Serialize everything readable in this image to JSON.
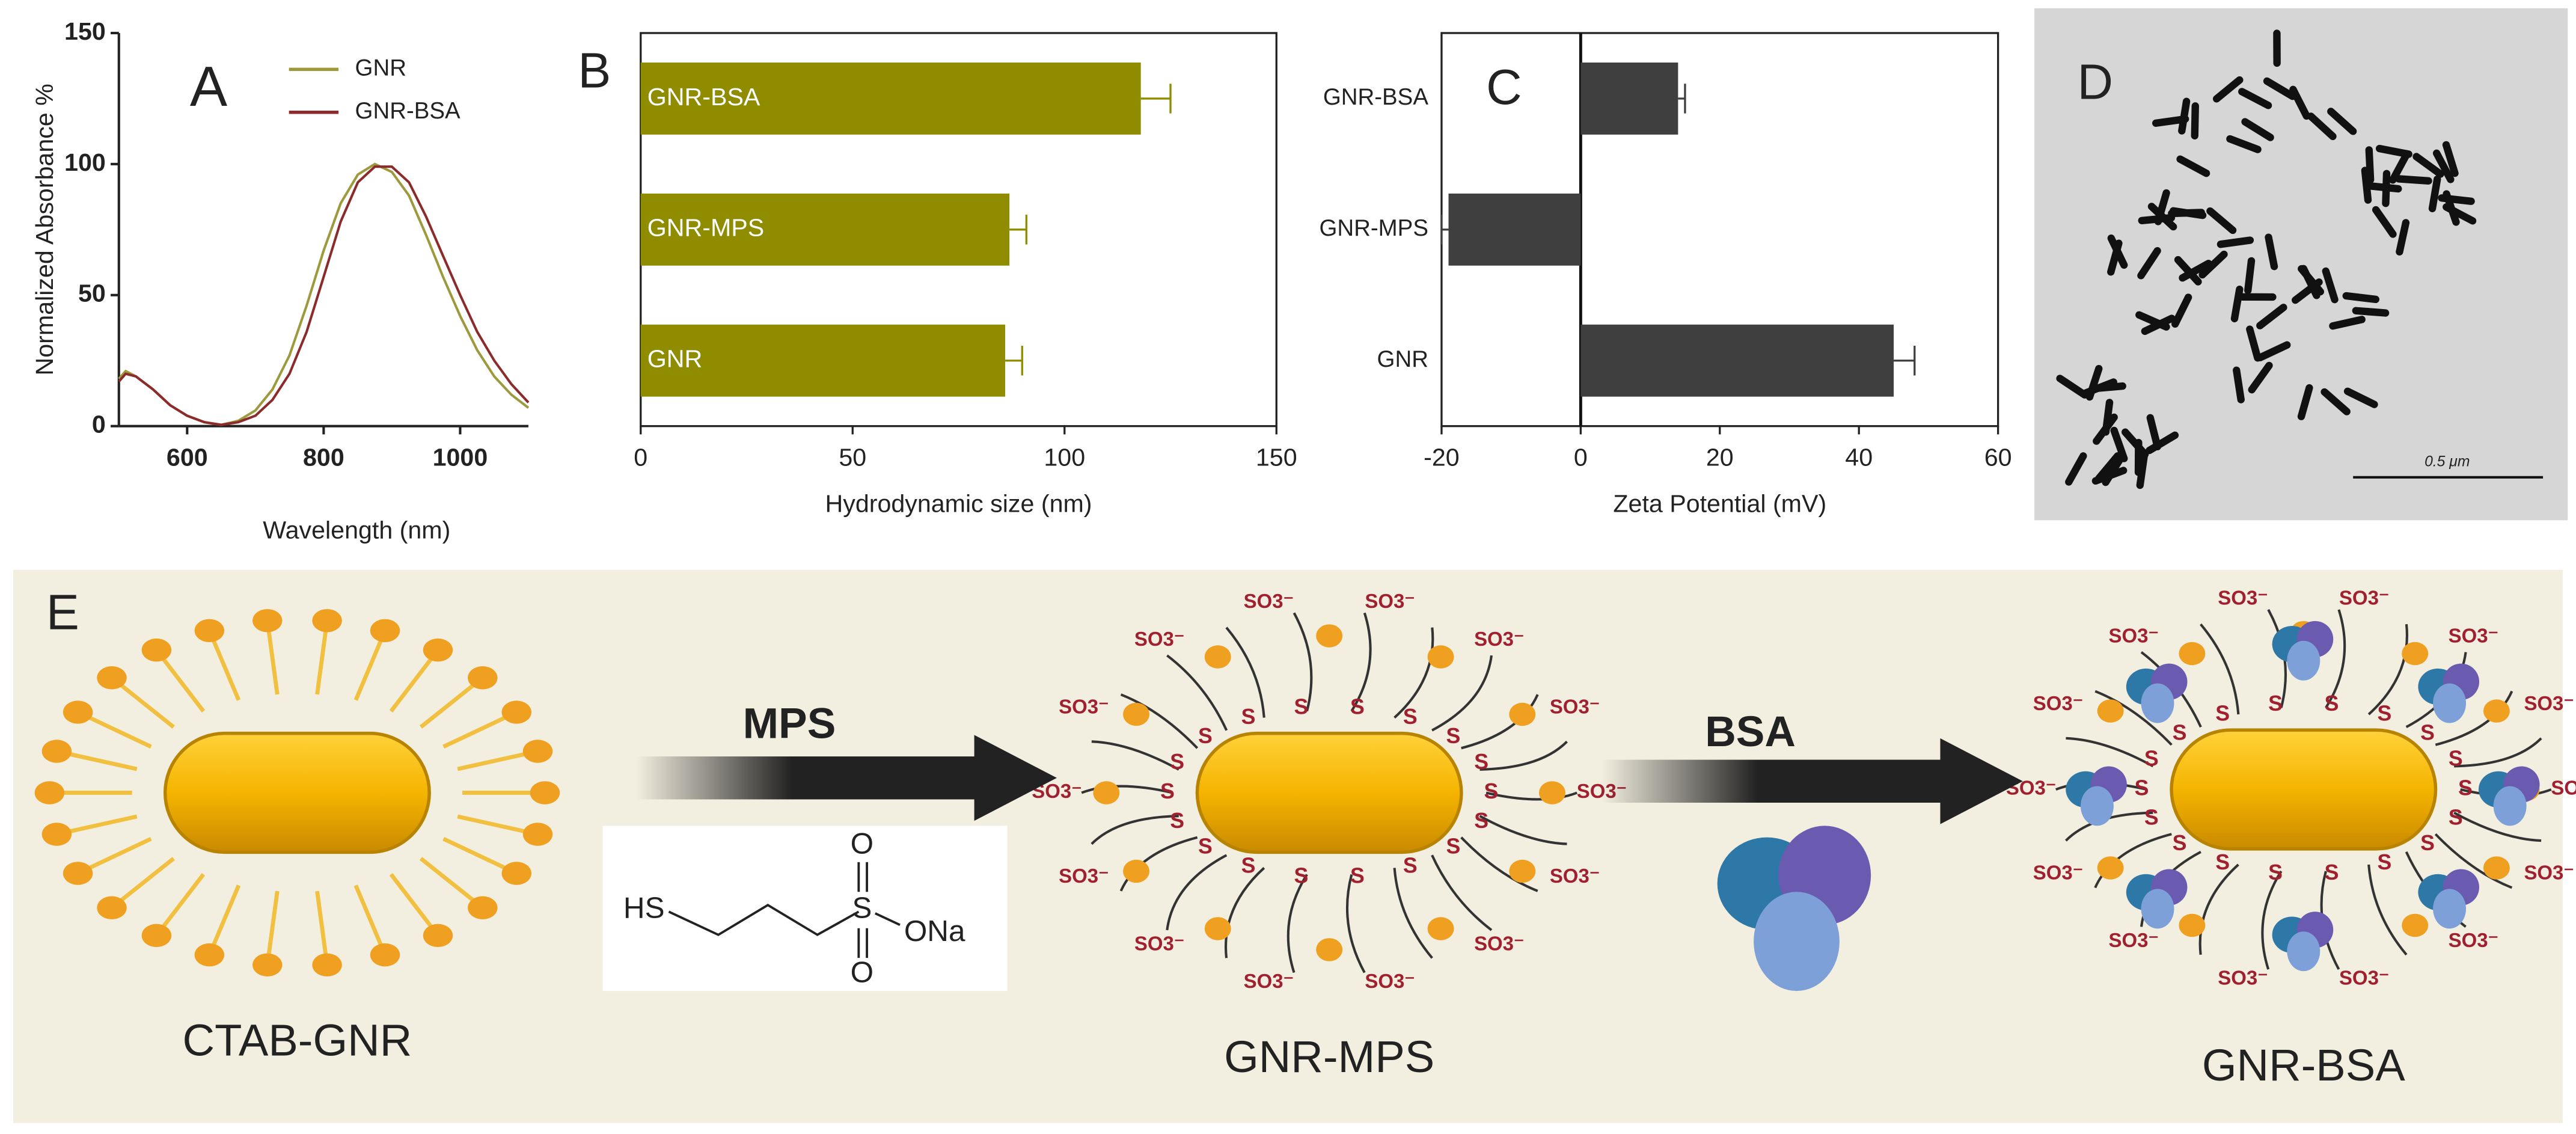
{
  "chart_data": [
    {
      "type": "line",
      "label": "A",
      "xlabel": "Wavelength (nm)",
      "ylabel": "Normalized Absorbance %",
      "x": [
        500,
        510,
        525,
        550,
        575,
        600,
        625,
        650,
        675,
        700,
        725,
        750,
        775,
        800,
        825,
        850,
        875,
        900,
        925,
        950,
        975,
        1000,
        1025,
        1050,
        1075,
        1100
      ],
      "series": [
        {
          "name": "GNR",
          "color": "#9c9a3c",
          "values": [
            18,
            21,
            19,
            14,
            8,
            4,
            1.5,
            0.5,
            2,
            6,
            14,
            27,
            46,
            67,
            85,
            96,
            100,
            97,
            88,
            73,
            57,
            42,
            29,
            19,
            12,
            7
          ]
        },
        {
          "name": "GNR-BSA",
          "color": "#8b2b2b",
          "values": [
            17,
            20,
            19,
            14,
            8,
            4,
            1.5,
            0.5,
            1.5,
            4,
            10,
            20,
            36,
            57,
            78,
            93,
            99,
            99,
            93,
            80,
            65,
            50,
            36,
            25,
            16,
            9
          ]
        }
      ],
      "xlim": [
        500,
        1100
      ],
      "xticks": [
        600,
        800,
        1000
      ],
      "ylim": [
        0,
        150
      ],
      "yticks": [
        0,
        50,
        100,
        150
      ],
      "legend": "upper right"
    },
    {
      "type": "hbar",
      "label": "B",
      "xlabel": "Hydrodynamic size (nm)",
      "categories": [
        "GNR-BSA",
        "GNR-MPS",
        "GNR"
      ],
      "values": [
        118,
        87,
        86
      ],
      "errors": [
        7,
        4,
        4
      ],
      "color": "#8f8c00",
      "xlim": [
        0,
        150
      ],
      "xticks": [
        0,
        50,
        100,
        150
      ],
      "labels_inside": true
    },
    {
      "type": "hbar",
      "label": "C",
      "xlabel": "Zeta Potential (mV)",
      "categories": [
        "GNR-BSA",
        "GNR-MPS",
        "GNR"
      ],
      "values": [
        14,
        -19,
        45
      ],
      "errors": [
        1,
        1,
        3
      ],
      "color": "#3f3f3f",
      "xlim": [
        -20,
        60
      ],
      "xticks": [
        -20,
        0,
        20,
        40,
        60
      ],
      "labels_inside": false
    }
  ],
  "micrograph": {
    "label": "D",
    "scale_bar": "0.5 μm"
  },
  "scheme": {
    "label": "E",
    "step1": "MPS",
    "step2": "BSA",
    "stages": [
      "CTAB-GNR",
      "GNR-MPS",
      "GNR-BSA"
    ],
    "thiol": "S",
    "sulfonate": "SO3⁻",
    "formula": {
      "thiol": "HS",
      "sulfur": "S",
      "oxygen": "O",
      "salt": "ONa"
    }
  }
}
